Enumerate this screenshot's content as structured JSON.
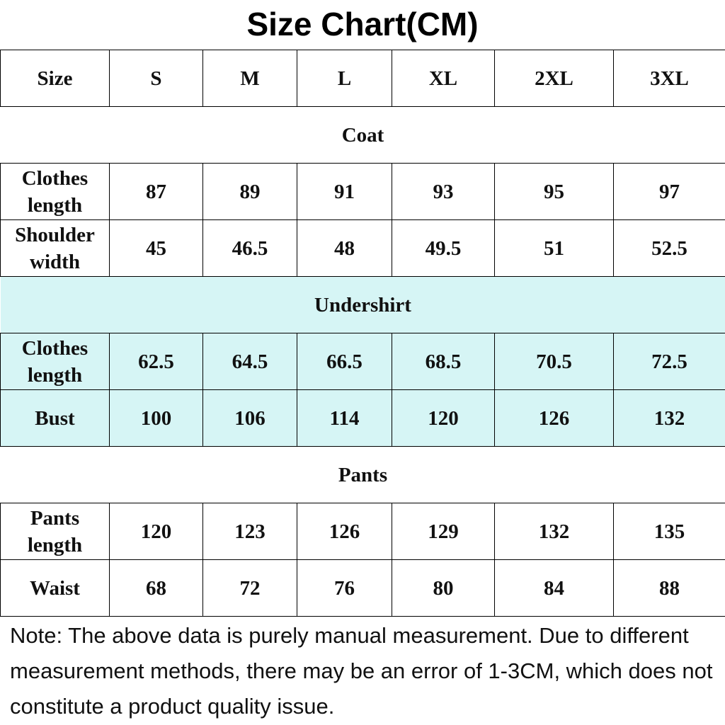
{
  "title": "Size Chart(CM)",
  "table": {
    "header": [
      "Size",
      "S",
      "M",
      "L",
      "XL",
      "2XL",
      "3XL"
    ],
    "sections": [
      {
        "name": "Coat",
        "rows": [
          {
            "label": "Clothes length",
            "values": [
              "87",
              "89",
              "91",
              "93",
              "95",
              "97"
            ]
          },
          {
            "label": "Shoulder width",
            "values": [
              "45",
              "46.5",
              "48",
              "49.5",
              "51",
              "52.5"
            ]
          }
        ]
      },
      {
        "name": "Undershirt",
        "rows": [
          {
            "label": "Clothes length",
            "values": [
              "62.5",
              "64.5",
              "66.5",
              "68.5",
              "70.5",
              "72.5"
            ]
          },
          {
            "label": "Bust",
            "values": [
              "100",
              "106",
              "114",
              "120",
              "126",
              "132"
            ]
          }
        ]
      },
      {
        "name": "Pants",
        "rows": [
          {
            "label": "Pants length",
            "values": [
              "120",
              "123",
              "126",
              "129",
              "132",
              "135"
            ]
          },
          {
            "label": "Waist",
            "values": [
              "68",
              "72",
              "76",
              "80",
              "84",
              "88"
            ]
          }
        ]
      }
    ]
  },
  "note": "Note: The above data is purely manual measurement. Due to different measurement methods, there may be an error of 1-3CM, which does not constitute a product quality issue."
}
